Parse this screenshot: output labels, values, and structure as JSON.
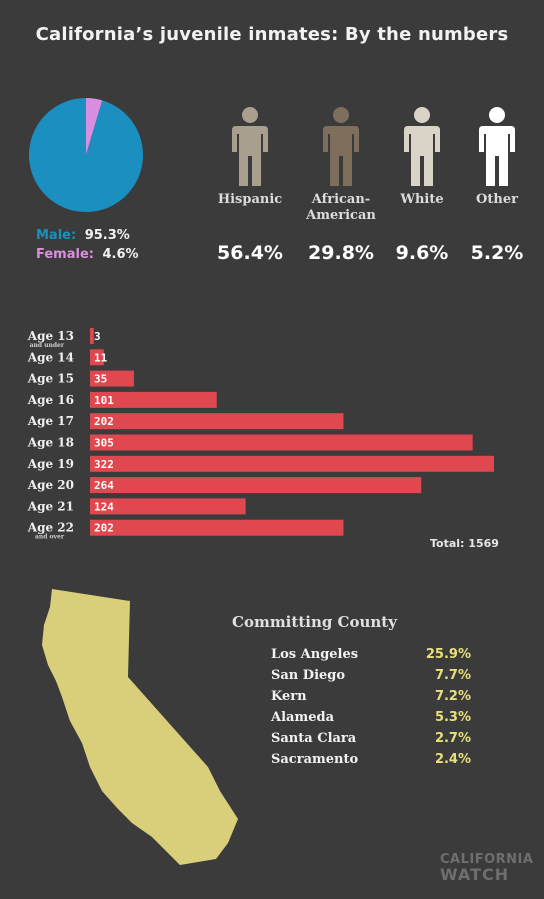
{
  "title": "California’s juvenile inmates:  By the numbers",
  "colors": {
    "background": "#3b3b3b",
    "male": "#1b8fc0",
    "female": "#d98fe0",
    "bar": "#e0484f",
    "county_value": "#e8e07c",
    "map": "#d9cf7a"
  },
  "gender": {
    "male_label": "Male:",
    "male_value": "95.3%",
    "female_label": "Female:",
    "female_value": "4.6%"
  },
  "ethnicity": [
    {
      "name": "Hispanic",
      "value": "56.4%",
      "color": "#a89f8f"
    },
    {
      "name": "African-\nAmerican",
      "value": "29.8%",
      "color": "#7d6f5b"
    },
    {
      "name": "White",
      "value": "9.6%",
      "color": "#dad3c8"
    },
    {
      "name": "Other",
      "value": "5.2%",
      "color": "#ffffff"
    }
  ],
  "chart_data": [
    {
      "type": "pie",
      "labels": [
        "Male",
        "Female"
      ],
      "values": [
        95.3,
        4.6
      ],
      "colors": [
        "#1b8fc0",
        "#d98fe0"
      ]
    },
    {
      "type": "bar",
      "orientation": "horizontal",
      "categories": [
        "Age 13",
        "Age 14",
        "Age 15",
        "Age 16",
        "Age 17",
        "Age 18",
        "Age 19",
        "Age 20",
        "Age 21",
        "Age 22"
      ],
      "category_sublabels": [
        "and under",
        "",
        "",
        "",
        "",
        "",
        "",
        "",
        "",
        "and over"
      ],
      "values": [
        3,
        11,
        35,
        101,
        202,
        305,
        322,
        264,
        124,
        202
      ],
      "total_label": "Total:",
      "total_value": "1569",
      "xlim": [
        0,
        322
      ]
    }
  ],
  "county": {
    "title": "Committing County",
    "rows": [
      {
        "name": "Los Angeles",
        "value": "25.9%"
      },
      {
        "name": "San Diego",
        "value": "7.7%"
      },
      {
        "name": "Kern",
        "value": "7.2%"
      },
      {
        "name": "Alameda",
        "value": "5.3%"
      },
      {
        "name": "Santa Clara",
        "value": "2.7%"
      },
      {
        "name": "Sacramento",
        "value": "2.4%"
      }
    ]
  },
  "logo": {
    "line1": "CALIFORNIA",
    "line2": "WATCH"
  },
  "map_icon": "california-state-shape"
}
